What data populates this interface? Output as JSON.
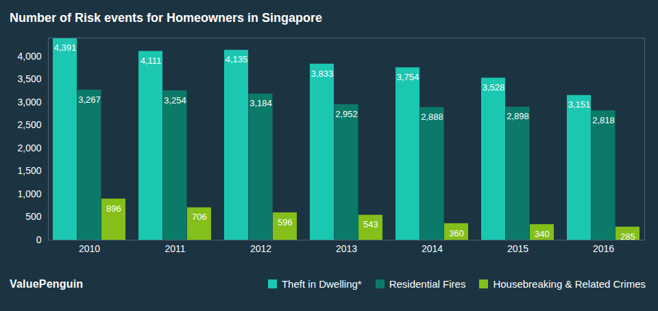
{
  "chart_data": {
    "type": "bar",
    "title": "Number of Risk events for Homeowners in Singapore",
    "caption": "ValuePenguin",
    "categories": [
      "2010",
      "2011",
      "2012",
      "2013",
      "2014",
      "2015",
      "2016"
    ],
    "series": [
      {
        "name": "Theft in Dwelling*",
        "color": "#1cc7b1",
        "values": [
          4391,
          4111,
          4135,
          3833,
          3754,
          3528,
          3151
        ],
        "value_labels": [
          "4,391",
          "4,111",
          "4,135",
          "3,833",
          "3,754",
          "3,528",
          "3,151"
        ]
      },
      {
        "name": "Residential Fires",
        "color": "#0b7a68",
        "values": [
          3267,
          3254,
          3184,
          2952,
          2888,
          2898,
          2818
        ],
        "value_labels": [
          "3,267",
          "3,254",
          "3,184",
          "2,952",
          "2,888",
          "2,898",
          "2,818"
        ]
      },
      {
        "name": "Housebreaking & Related Crimes",
        "color": "#84bf1a",
        "values": [
          896,
          706,
          596,
          543,
          360,
          340,
          285
        ]
      }
    ],
    "ylim": [
      0,
      4400
    ],
    "yticks": [
      0,
      500,
      {
        "value": 1000,
        "label": "1,000"
      },
      {
        "value": 1500,
        "label": "1,500"
      },
      {
        "value": 2000,
        "label": "2,000"
      },
      {
        "value": 2500,
        "label": "2,500"
      },
      {
        "value": 3000,
        "label": "3,000"
      },
      {
        "value": 3500,
        "label": "3,500"
      },
      {
        "value": 4000,
        "label": "4,000"
      }
    ],
    "grid": false,
    "data_labels": true,
    "legend": "bottom right"
  }
}
